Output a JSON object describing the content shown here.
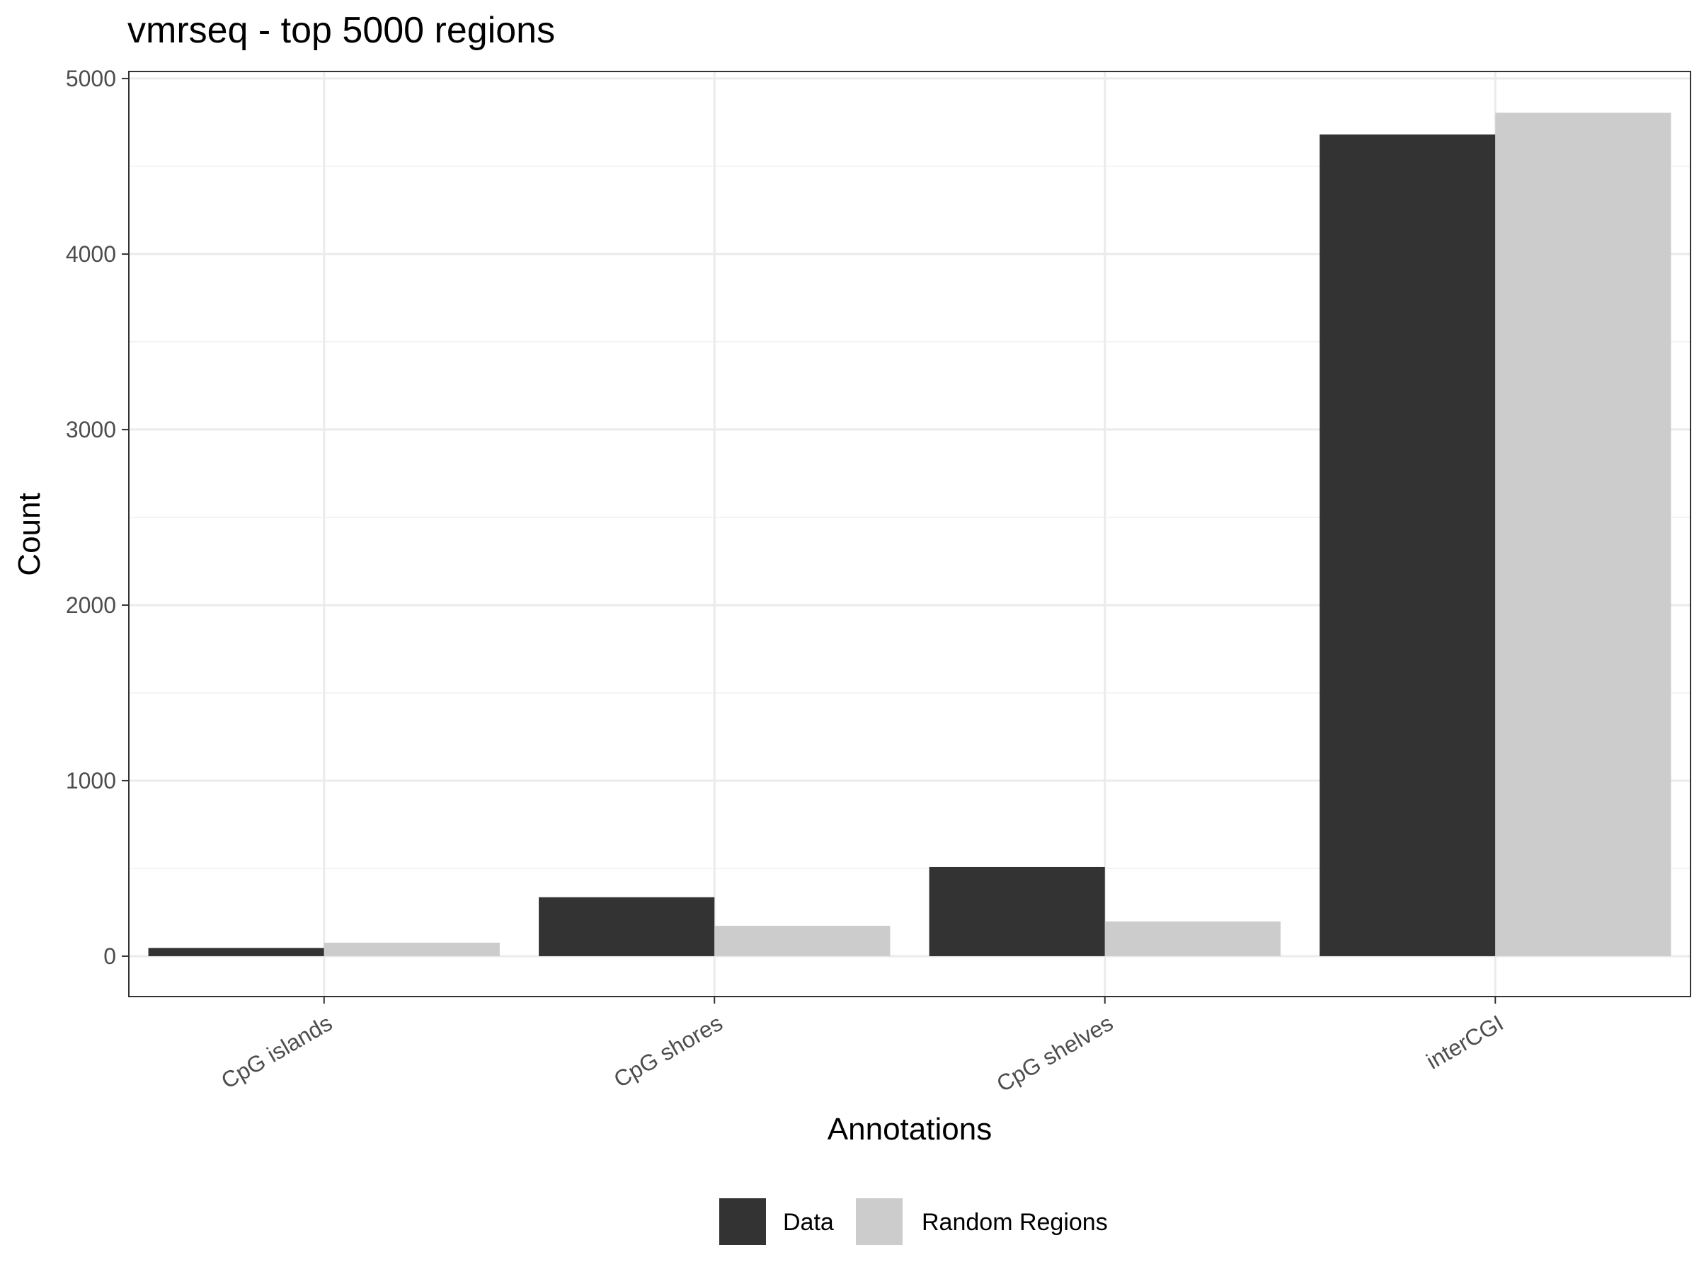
{
  "chart_data": {
    "type": "bar",
    "title": "vmrseq - top 5000 regions",
    "xlabel": "Annotations",
    "ylabel": "Count",
    "categories": [
      "CpG islands",
      "CpG shores",
      "CpG shelves",
      "interCGI"
    ],
    "series": [
      {
        "name": "Data",
        "color": "#333333",
        "values": [
          47,
          336,
          508,
          4681
        ]
      },
      {
        "name": "Random Regions",
        "color": "#cccccc",
        "values": [
          77,
          173,
          198,
          4805
        ]
      }
    ],
    "ylim": [
      -230,
      5040
    ],
    "yticks": [
      0,
      1000,
      2000,
      3000,
      4000,
      5000
    ],
    "ytick_labels": [
      "0",
      "1000",
      "2000",
      "3000",
      "4000",
      "5000"
    ],
    "grid": true,
    "legend_position": "bottom"
  }
}
